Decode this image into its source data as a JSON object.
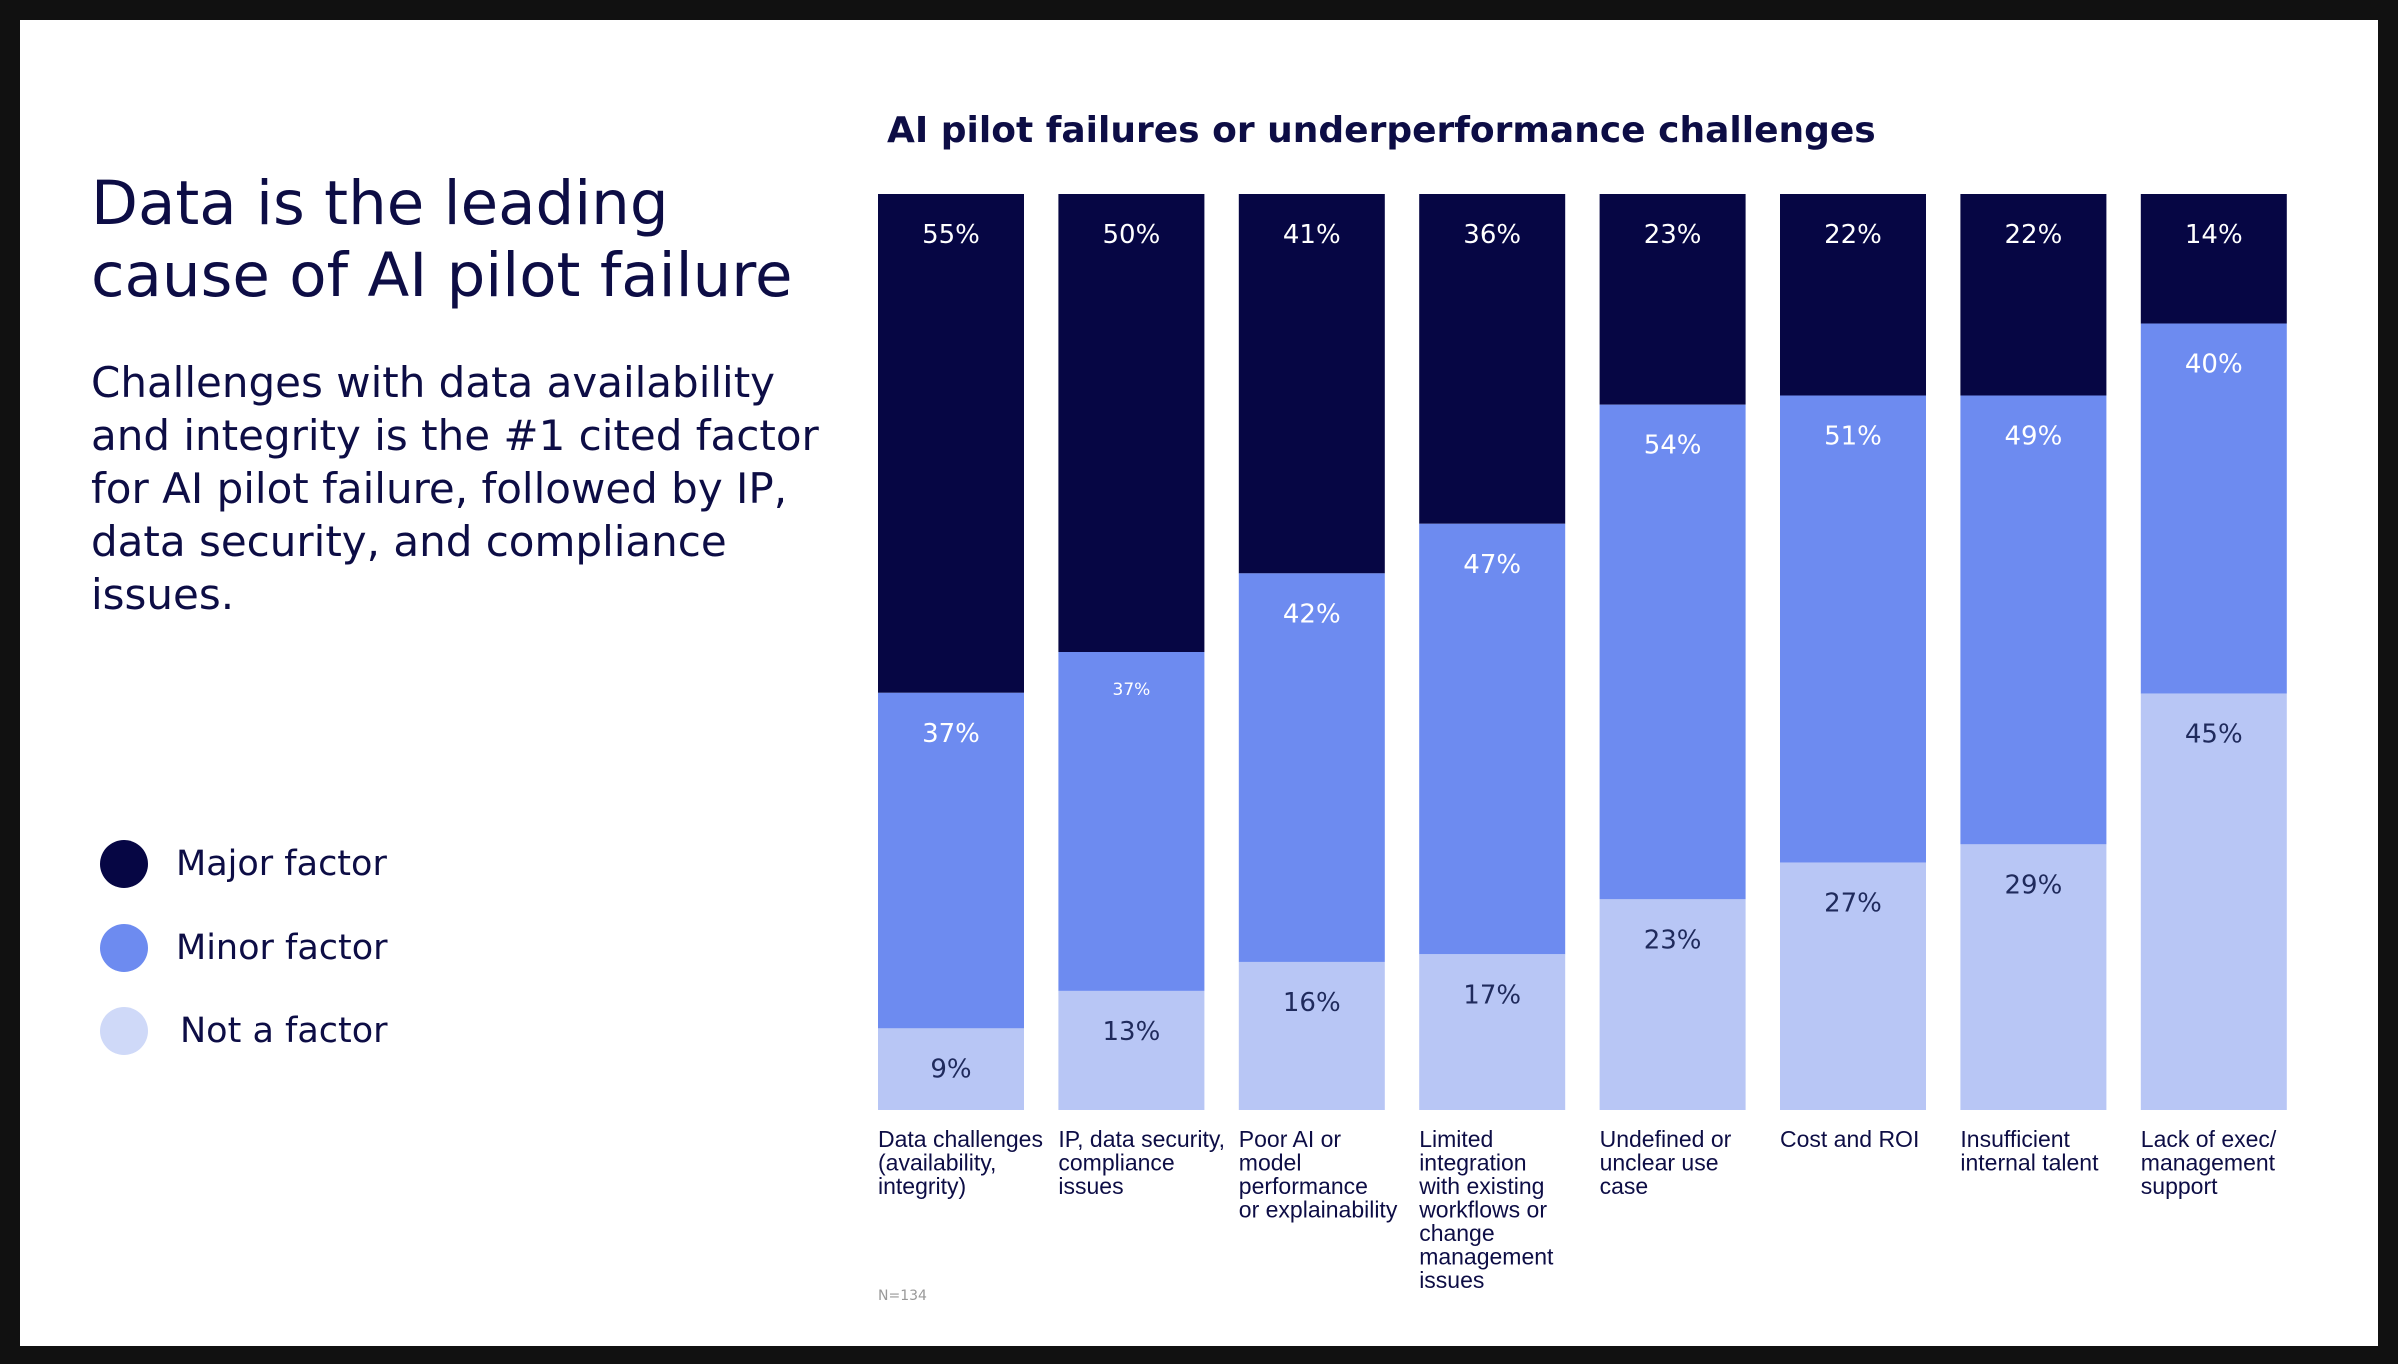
{
  "headline": "Data is the leading cause of AI pilot failure",
  "subtext": "Challenges with data availability and integrity is the #1 cited factor for AI pilot failure, followed by IP, data security, and compliance issues.",
  "legend": [
    {
      "label": "Major factor",
      "color": "#060644"
    },
    {
      "label": "Minor factor",
      "color": "#6d8bf0"
    },
    {
      "label": "Not a factor",
      "color": "#b8c6f5"
    }
  ],
  "footnote": "N=134",
  "chart_data": {
    "type": "bar",
    "stacked": true,
    "title": "AI pilot failures or underperformance challenges",
    "categories": [
      "Data challenges (availability, integrity)",
      "IP, data security, compliance issues",
      "Poor AI or model performance or explainability",
      "Limited integration with existing workflows or change management issues",
      "Undefined or unclear use case",
      "Cost and ROI",
      "Insufficient internal talent",
      "Lack of exec/ management support"
    ],
    "category_lines": [
      [
        "Data challenges",
        "(availability,",
        "integrity)"
      ],
      [
        "IP, data security,",
        "compliance",
        "issues"
      ],
      [
        "Poor AI or",
        "model",
        "performance",
        "or explainability"
      ],
      [
        "Limited",
        "integration",
        "with existing",
        "workflows or",
        "change",
        "management",
        "issues"
      ],
      [
        "Undefined or",
        "unclear use",
        "case"
      ],
      [
        "Cost and ROI"
      ],
      [
        "Insufficient",
        "internal talent"
      ],
      [
        "Lack of exec/",
        "management",
        "support"
      ]
    ],
    "series": [
      {
        "name": "Major factor",
        "color": "#060644",
        "values": [
          55,
          50,
          41,
          36,
          23,
          22,
          22,
          14
        ]
      },
      {
        "name": "Minor factor",
        "color": "#6d8bf0",
        "values": [
          37,
          37,
          42,
          47,
          54,
          51,
          49,
          40
        ]
      },
      {
        "name": "Not a factor",
        "color": "#b8c6f5",
        "values": [
          9,
          13,
          16,
          17,
          23,
          27,
          29,
          45
        ]
      }
    ],
    "data_labels": [
      [
        "55%",
        "50%",
        "41%",
        "36%",
        "23%",
        "22%",
        "22%",
        "14%"
      ],
      [
        "37%",
        "37%",
        "42%",
        "47%",
        "54%",
        "51%",
        "49%",
        "40%"
      ],
      [
        "9%",
        "13%",
        "16%",
        "17%",
        "23%",
        "27%",
        "29%",
        "45%"
      ]
    ],
    "label_colors": [
      "#ffffff",
      "#ffffff",
      "#1f2a5c"
    ],
    "legend_position": "left",
    "grid": false
  }
}
